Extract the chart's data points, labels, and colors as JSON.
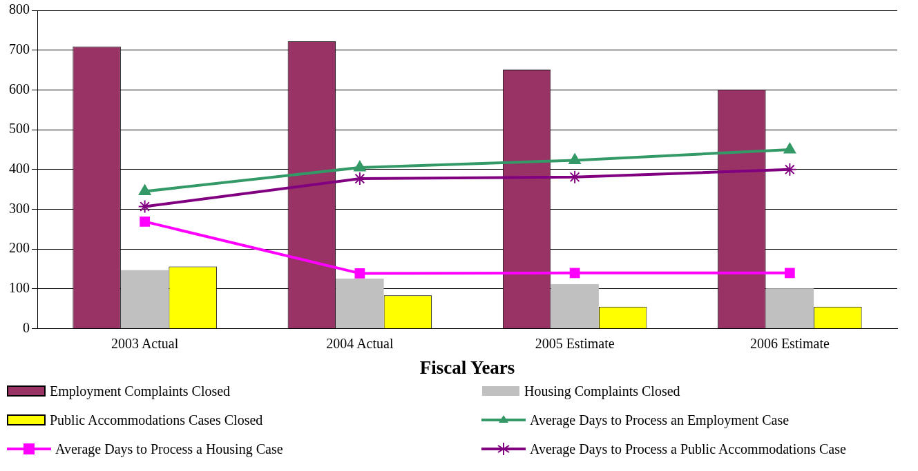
{
  "chart_data": {
    "type": "bar",
    "xlabel": "Fiscal Years",
    "categories": [
      "2003 Actual",
      "2004 Actual",
      "2005 Estimate",
      "2006 Estimate"
    ],
    "ylim": [
      0,
      800
    ],
    "yticks": [
      0,
      100,
      200,
      300,
      400,
      500,
      600,
      700,
      800
    ],
    "grid": "y",
    "legend": "bottom",
    "series": [
      {
        "name": "Employment Complaints Closed",
        "color": "#993366",
        "values": [
          709,
          722,
          651,
          601
        ]
      },
      {
        "name": "Housing Complaints Closed",
        "color": "#c0c0c0",
        "values": [
          147,
          126,
          112,
          101
        ]
      },
      {
        "name": "Public Accommodations Cases Closed",
        "color": "#ffff00",
        "values": [
          156,
          84,
          55,
          55
        ]
      },
      {
        "name": "Average Days to Process an Employment Case",
        "type": "line",
        "color": "#339966",
        "marker": "triangle",
        "values": [
          345,
          405,
          423,
          450
        ]
      },
      {
        "name": "Average Days to Process a Housing Case",
        "type": "line",
        "color": "#ff00ff",
        "marker": "square",
        "values": [
          269,
          139,
          140,
          140
        ]
      },
      {
        "name": "Average Days to Process a Public Accommodations Case",
        "type": "line",
        "color": "#800080",
        "marker": "cross",
        "values": [
          307,
          377,
          381,
          400
        ]
      }
    ]
  }
}
